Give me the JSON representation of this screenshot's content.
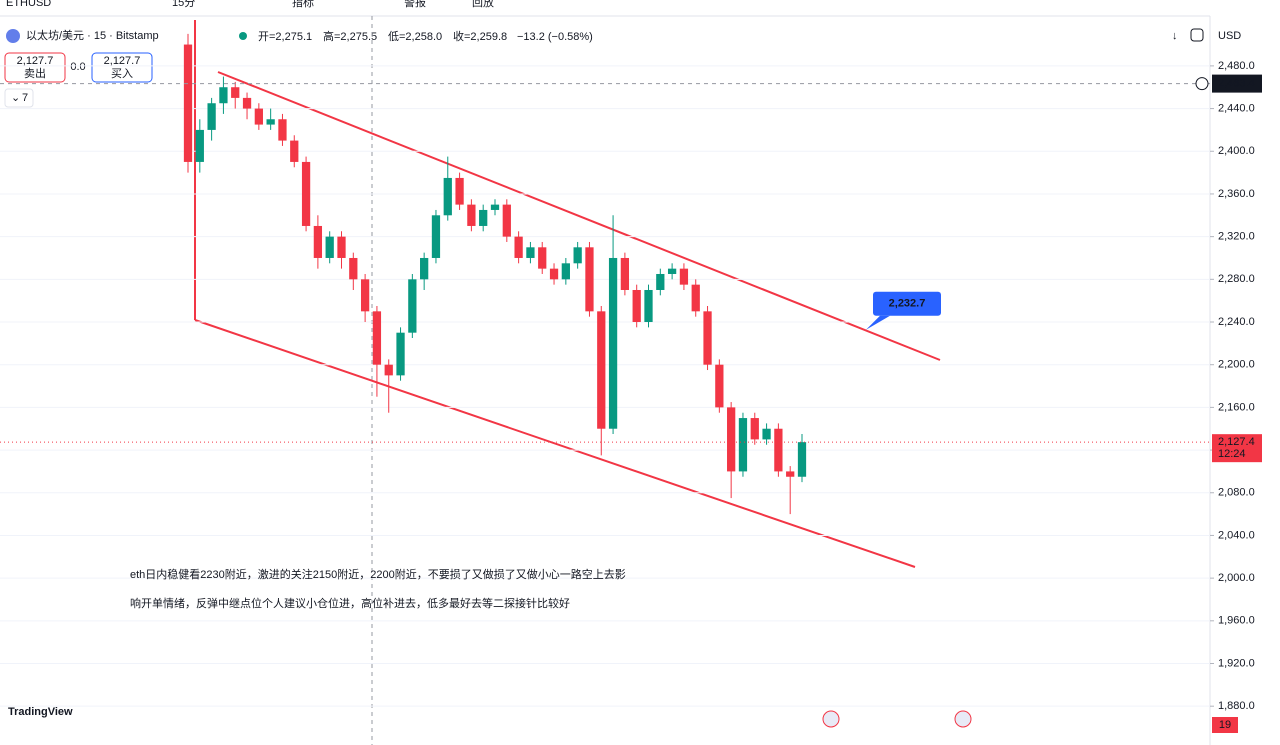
{
  "toolbar": {
    "symbol": "ETHUSD",
    "interval": "15分",
    "indicators": "指标",
    "alerts": "警报",
    "replay": "回放"
  },
  "legend": {
    "title": "以太坊/美元 · 15 · Bitstamp",
    "open": "开=2,275.1",
    "high": "高=2,275.5",
    "low": "低=2,258.0",
    "close": "收=2,259.8",
    "change": "−13.2 (−0.58%)"
  },
  "trade": {
    "sell_price": "2,127.7",
    "sell": "卖出",
    "spread": "0.0",
    "buy_price": "2,127.7",
    "buy": "买入",
    "indicators_count": "7"
  },
  "currency": "USD",
  "chart_data": {
    "type": "candlestick",
    "open": [
      2500,
      2390,
      2420,
      2445,
      2460,
      2450,
      2440,
      2425,
      2430,
      2410,
      2390,
      2330,
      2300,
      2320,
      2300,
      2280,
      2250,
      2200,
      2190,
      2230,
      2280,
      2300,
      2340,
      2375,
      2350,
      2330,
      2345,
      2350,
      2320,
      2300,
      2310,
      2290,
      2280,
      2295,
      2310,
      2250,
      2140,
      2300,
      2270,
      2240,
      2270,
      2285,
      2290,
      2275,
      2250,
      2200,
      2160,
      2100,
      2150,
      2130,
      2140,
      2100,
      2095
    ],
    "high": [
      2510,
      2430,
      2450,
      2470,
      2465,
      2455,
      2445,
      2440,
      2435,
      2415,
      2395,
      2340,
      2325,
      2325,
      2305,
      2285,
      2255,
      2205,
      2235,
      2285,
      2305,
      2345,
      2395,
      2380,
      2355,
      2350,
      2355,
      2355,
      2325,
      2315,
      2315,
      2295,
      2300,
      2315,
      2315,
      2255,
      2340,
      2305,
      2275,
      2275,
      2290,
      2295,
      2295,
      2280,
      2255,
      2205,
      2165,
      2155,
      2155,
      2145,
      2145,
      2105,
      2135
    ],
    "low": [
      2380,
      2380,
      2410,
      2435,
      2440,
      2430,
      2420,
      2420,
      2405,
      2385,
      2325,
      2290,
      2295,
      2290,
      2270,
      2240,
      2170,
      2155,
      2185,
      2225,
      2270,
      2295,
      2335,
      2345,
      2325,
      2325,
      2340,
      2315,
      2295,
      2295,
      2285,
      2275,
      2275,
      2290,
      2245,
      2115,
      2135,
      2265,
      2235,
      2235,
      2265,
      2280,
      2270,
      2245,
      2195,
      2155,
      2075,
      2095,
      2125,
      2125,
      2095,
      2060,
      2090
    ],
    "close": [
      2390,
      2420,
      2445,
      2460,
      2450,
      2440,
      2425,
      2430,
      2410,
      2390,
      2330,
      2300,
      2320,
      2300,
      2280,
      2250,
      2200,
      2190,
      2230,
      2280,
      2300,
      2340,
      2375,
      2350,
      2330,
      2345,
      2350,
      2320,
      2300,
      2310,
      2290,
      2280,
      2295,
      2310,
      2250,
      2140,
      2300,
      2270,
      2240,
      2270,
      2285,
      2290,
      2275,
      2250,
      2200,
      2160,
      2100,
      2150,
      2130,
      2140,
      2100,
      2095,
      2127.4
    ],
    "up_color": "#089981",
    "down_color": "#f23645",
    "ylim": [
      1853,
      2523
    ],
    "yticks": [
      {
        "value": 2480,
        "label": "2,480.0"
      },
      {
        "value": 2440,
        "label": "2,440.0"
      },
      {
        "value": 2400,
        "label": "2,400.0"
      },
      {
        "value": 2360,
        "label": "2,360.0"
      },
      {
        "value": 2320,
        "label": "2,320.0"
      },
      {
        "value": 2280,
        "label": "2,280.0"
      },
      {
        "value": 2240,
        "label": "2,240.0"
      },
      {
        "value": 2200,
        "label": "2,200.0"
      },
      {
        "value": 2160,
        "label": "2,160.0"
      },
      {
        "value": 2120,
        "label": "2,120.0"
      },
      {
        "value": 2080,
        "label": "2,080.0"
      },
      {
        "value": 2040,
        "label": "2,040.0"
      },
      {
        "value": 2000,
        "label": "2,000.0"
      },
      {
        "value": 1960,
        "label": "1,960.0"
      },
      {
        "value": 1920,
        "label": "1,920.0"
      },
      {
        "value": 1880,
        "label": "1,880.0"
      }
    ],
    "crosshair": {
      "value": 2463.4,
      "label": "2,463.4"
    },
    "last_price": {
      "value": 2127.4,
      "label": "2,127.4"
    },
    "countdown": "12:24",
    "callout": {
      "value": 2232.7,
      "label": "2,232.7"
    }
  },
  "caption": [
    "eth日内稳健看2230附近，激进的关注2150附近，2200附近，不要损了又做损了又做小心一路空上去影",
    "响开单情绪，反弹中继点位个人建议小仓位进，高位补进去，低多最好去等二探接针比较好"
  ],
  "logo": "TradingView",
  "badge": "19"
}
